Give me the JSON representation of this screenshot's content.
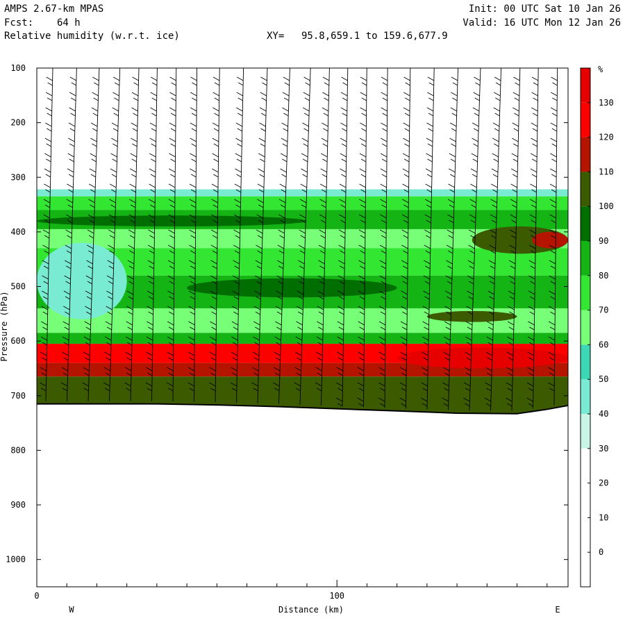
{
  "header": {
    "model": "AMPS 2.67-km MPAS",
    "fcst_label": "Fcst:",
    "fcst_value": "64 h",
    "field": "Relative humidity (w.r.t. ice)",
    "xy_label": "XY=",
    "xy_value": "95.8,659.1 to 159.6,677.9",
    "init": "Init: 00 UTC Sat 10 Jan 26",
    "valid": "Valid: 16 UTC Mon 12 Jan 26"
  },
  "chart_data": {
    "type": "heatmap",
    "title": "Relative humidity (w.r.t. ice)",
    "xlabel": "Distance (km)",
    "ylabel": "Pressure (hPa)",
    "x_left_label": "W",
    "x_right_label": "E",
    "xlim": [
      0,
      177
    ],
    "ylim": [
      1050,
      100
    ],
    "x_ticks": [
      "0",
      "100"
    ],
    "x_tick_values": [
      0,
      100
    ],
    "y_ticks": [
      "100",
      "200",
      "300",
      "400",
      "500",
      "600",
      "700",
      "800",
      "900",
      "1000"
    ],
    "y_tick_values": [
      100,
      200,
      300,
      400,
      500,
      600,
      700,
      800,
      900,
      1000
    ],
    "colorbar": {
      "unit": "%",
      "labels": [
        "130",
        "120",
        "110",
        "100",
        "90",
        "80",
        "70",
        "60",
        "50",
        "40",
        "30",
        "20",
        "10",
        "0"
      ],
      "levels": [
        -10,
        0,
        10,
        20,
        30,
        40,
        50,
        60,
        70,
        80,
        90,
        100,
        110,
        120,
        130,
        140
      ],
      "colors": [
        "#ffffff",
        "#ffffff",
        "#ffffff",
        "#ffffff",
        "#c8f5e6",
        "#78ebd2",
        "#3cd7b4",
        "#78ff78",
        "#32e632",
        "#14b414",
        "#006e00",
        "#3c5a00",
        "#b41400",
        "#ff0000",
        "#e60000"
      ]
    },
    "surface_pressure": {
      "x": [
        0,
        20,
        40,
        60,
        80,
        100,
        120,
        140,
        160,
        170,
        177
      ],
      "p": [
        715,
        715,
        715,
        717,
        720,
        724,
        728,
        732,
        733,
        725,
        718
      ]
    },
    "rh_bands": [
      {
        "p_top": 312,
        "p_bottom": 322,
        "rh": 25
      },
      {
        "p_top": 322,
        "p_bottom": 335,
        "rh": 45
      },
      {
        "p_top": 335,
        "p_bottom": 360,
        "rh": 75
      },
      {
        "p_top": 360,
        "p_bottom": 395,
        "rh": 85
      },
      {
        "p_top": 395,
        "p_bottom": 430,
        "rh": 65
      },
      {
        "p_top": 430,
        "p_bottom": 480,
        "rh": 70
      },
      {
        "p_top": 480,
        "p_bottom": 540,
        "rh": 80
      },
      {
        "p_top": 540,
        "p_bottom": 585,
        "rh": 65
      },
      {
        "p_top": 585,
        "p_bottom": 605,
        "rh": 85
      },
      {
        "p_top": 605,
        "p_bottom": 640,
        "rh": 125
      },
      {
        "p_top": 640,
        "p_bottom": 665,
        "rh": 115
      },
      {
        "p_top": 665,
        "p_bottom": 735,
        "rh": 105
      }
    ],
    "rh_patches": [
      {
        "x0": 0,
        "x1": 30,
        "p_top": 420,
        "p_bottom": 560,
        "rh": 45
      },
      {
        "x0": 50,
        "x1": 120,
        "p_top": 485,
        "p_bottom": 520,
        "rh": 95
      },
      {
        "x0": 130,
        "x1": 160,
        "p_top": 545,
        "p_bottom": 565,
        "rh": 100
      },
      {
        "x0": 145,
        "x1": 177,
        "p_top": 390,
        "p_bottom": 440,
        "rh": 100
      },
      {
        "x0": 165,
        "x1": 177,
        "p_top": 400,
        "p_bottom": 430,
        "rh": 110
      },
      {
        "x0": 0,
        "x1": 90,
        "p_top": 370,
        "p_bottom": 390,
        "rh": 95
      },
      {
        "x0": 120,
        "x1": 177,
        "p_top": 612,
        "p_bottom": 650,
        "rh": 135
      }
    ]
  }
}
